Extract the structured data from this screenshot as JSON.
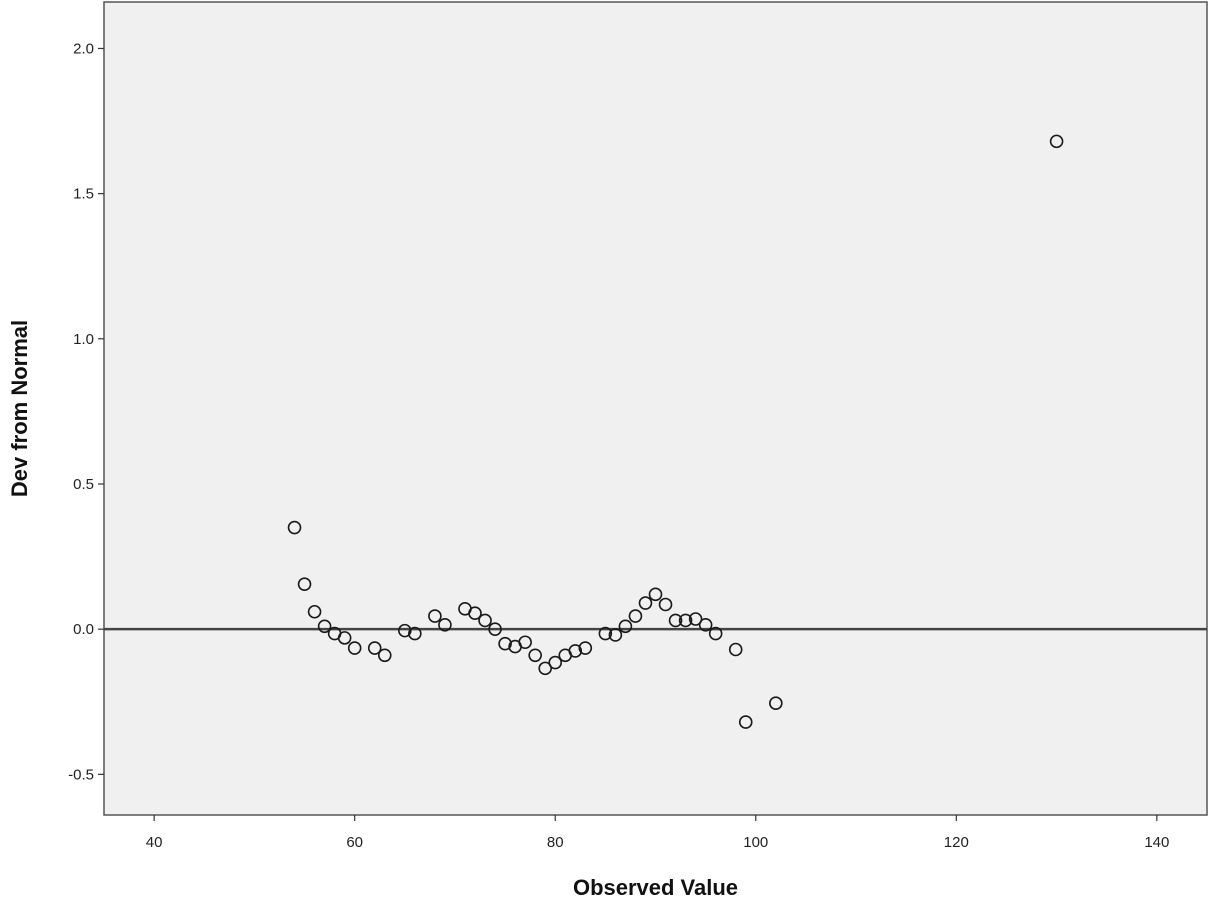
{
  "chart_data": {
    "type": "scatter",
    "title": "",
    "xlabel": "Observed Value",
    "ylabel": "Dev from Normal",
    "xlim": [
      35,
      145
    ],
    "ylim": [
      -0.64,
      2.16
    ],
    "xticks": [
      40,
      60,
      80,
      100,
      120,
      140
    ],
    "xtick_labels": [
      "40",
      "60",
      "80",
      "100",
      "120",
      "140"
    ],
    "yticks": [
      -0.5,
      0.0,
      0.5,
      1.0,
      1.5,
      2.0
    ],
    "ytick_labels": [
      "-0.5",
      "0.0",
      "0.5",
      "1.0",
      "1.5",
      "2.0"
    ],
    "reference_line_y": 0.0,
    "grid": false,
    "plot_background": "#f0f0f0",
    "marker": "open-circle",
    "points": [
      {
        "x": 54,
        "y": 0.35
      },
      {
        "x": 55,
        "y": 0.155
      },
      {
        "x": 56,
        "y": 0.06
      },
      {
        "x": 57,
        "y": 0.01
      },
      {
        "x": 58,
        "y": -0.015
      },
      {
        "x": 59,
        "y": -0.03
      },
      {
        "x": 60,
        "y": -0.065
      },
      {
        "x": 62,
        "y": -0.065
      },
      {
        "x": 63,
        "y": -0.09
      },
      {
        "x": 65,
        "y": -0.005
      },
      {
        "x": 66,
        "y": -0.015
      },
      {
        "x": 68,
        "y": 0.045
      },
      {
        "x": 69,
        "y": 0.015
      },
      {
        "x": 71,
        "y": 0.07
      },
      {
        "x": 72,
        "y": 0.055
      },
      {
        "x": 73,
        "y": 0.03
      },
      {
        "x": 74,
        "y": 0.0
      },
      {
        "x": 75,
        "y": -0.05
      },
      {
        "x": 76,
        "y": -0.06
      },
      {
        "x": 77,
        "y": -0.045
      },
      {
        "x": 78,
        "y": -0.09
      },
      {
        "x": 79,
        "y": -0.135
      },
      {
        "x": 80,
        "y": -0.115
      },
      {
        "x": 81,
        "y": -0.09
      },
      {
        "x": 82,
        "y": -0.075
      },
      {
        "x": 83,
        "y": -0.065
      },
      {
        "x": 85,
        "y": -0.015
      },
      {
        "x": 86,
        "y": -0.02
      },
      {
        "x": 87,
        "y": 0.01
      },
      {
        "x": 88,
        "y": 0.045
      },
      {
        "x": 89,
        "y": 0.09
      },
      {
        "x": 90,
        "y": 0.12
      },
      {
        "x": 91,
        "y": 0.085
      },
      {
        "x": 92,
        "y": 0.03
      },
      {
        "x": 93,
        "y": 0.03
      },
      {
        "x": 94,
        "y": 0.035
      },
      {
        "x": 95,
        "y": 0.015
      },
      {
        "x": 96,
        "y": -0.015
      },
      {
        "x": 98,
        "y": -0.07
      },
      {
        "x": 99,
        "y": -0.32
      },
      {
        "x": 102,
        "y": -0.255
      },
      {
        "x": 130,
        "y": 1.68
      }
    ]
  }
}
